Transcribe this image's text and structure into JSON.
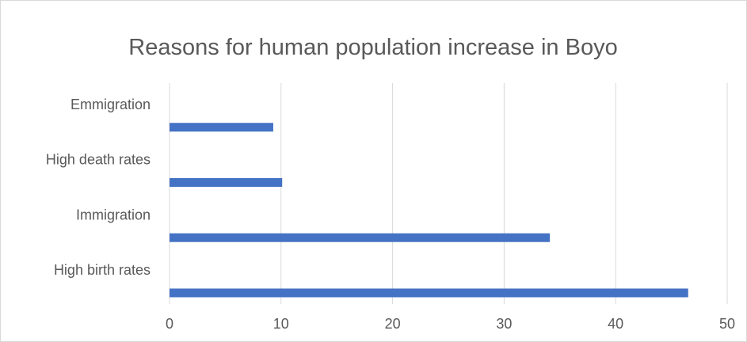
{
  "chart_data": {
    "type": "bar",
    "orientation": "horizontal",
    "title": "Reasons for human population increase in Boyo",
    "xlabel": "",
    "ylabel": "",
    "categories": [
      "Emmigration",
      "High death rates",
      "Immigration",
      "High birth rates"
    ],
    "values": [
      9.3,
      10.1,
      34.1,
      46.5
    ],
    "xlim": [
      0,
      50
    ],
    "ticks": [
      "0",
      "10",
      "20",
      "30",
      "40",
      "50"
    ],
    "grid": "vertical",
    "legend": "none",
    "bar_color": "#4472c4",
    "grid_color": "#d9d9d9",
    "text_color": "#595959"
  }
}
